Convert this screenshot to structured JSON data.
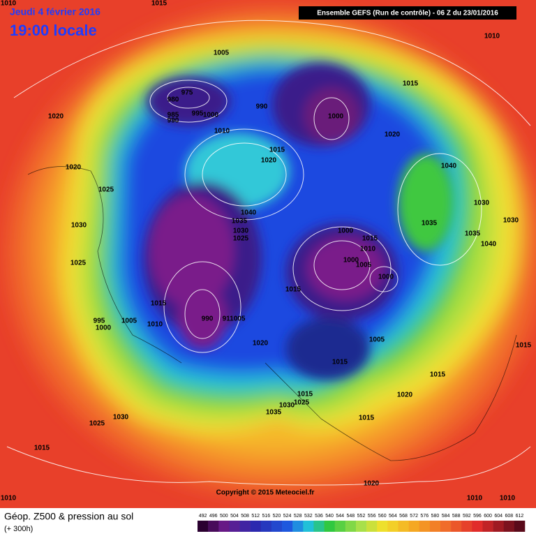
{
  "header": {
    "date": "Jeudi 4 février 2016",
    "time": "19:00 locale",
    "model": "Ensemble GEFS  (Run de contrôle)  -  06 Z du 23/01/2016"
  },
  "footer": {
    "title": "Géop. Z500 & pression au sol",
    "lead": "(+ 300h)",
    "copyright": "Copyright © 2015 Meteociel.fr"
  },
  "legend": {
    "ticks": [
      492,
      496,
      500,
      504,
      508,
      512,
      516,
      520,
      524,
      528,
      532,
      536,
      540,
      544,
      548,
      552,
      556,
      560,
      564,
      568,
      572,
      576,
      580,
      584,
      588,
      592,
      596,
      600,
      604,
      608,
      612
    ]
  },
  "isobars": [
    "1010",
    "1015",
    "1010",
    "1005",
    "975",
    "980",
    "985",
    "990",
    "995",
    "1000",
    "990",
    "1000",
    "1015",
    "1020",
    "1010",
    "1020",
    "1015",
    "1020",
    "1020",
    "1040",
    "1025",
    "1030",
    "1030",
    "1040",
    "1035",
    "1030",
    "1025",
    "1000",
    "1015",
    "1035",
    "1035",
    "1030",
    "1040",
    "1010",
    "1025",
    "1000",
    "1005",
    "1000",
    "1015",
    "1015",
    "995",
    "1005",
    "1000",
    "1010",
    "990",
    "911005",
    "1020",
    "1005",
    "1015",
    "1015",
    "1015",
    "1015",
    "1030",
    "1025",
    "1020",
    "1035",
    "1015",
    "1030",
    "1025",
    "1015",
    "1020",
    "1010",
    "1010",
    "1010"
  ]
}
